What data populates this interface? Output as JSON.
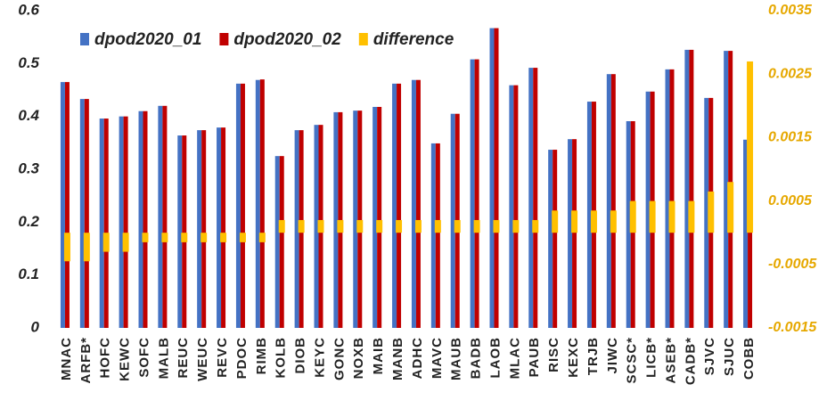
{
  "chart_data": {
    "type": "bar",
    "categories": [
      "MNAC",
      "ARFB*",
      "HOFC",
      "KEWC",
      "SOFC",
      "MALB",
      "REUC",
      "WEUC",
      "REVC",
      "PDOC",
      "RIMB",
      "KOLB",
      "DIOB",
      "KEYC",
      "GONC",
      "NOXB",
      "MAIB",
      "MANB",
      "ADHC",
      "MAVC",
      "MAUB",
      "BADB",
      "LAOB",
      "MLAC",
      "PAUB",
      "RISC",
      "KEXC",
      "TRJB",
      "JIWC",
      "SCSC*",
      "LICB*",
      "ASEB*",
      "CADB*",
      "SJVC",
      "SJUC",
      "COBB"
    ],
    "series": [
      {
        "name": "dpod2020_01",
        "color": "#4472c4",
        "values": [
          0.465,
          0.433,
          0.396,
          0.4,
          0.41,
          0.42,
          0.364,
          0.374,
          0.379,
          0.462,
          0.469,
          0.325,
          0.374,
          0.384,
          0.408,
          0.411,
          0.418,
          0.462,
          0.469,
          0.349,
          0.405,
          0.508,
          0.567,
          0.459,
          0.492,
          0.337,
          0.357,
          0.428,
          0.48,
          0.391,
          0.447,
          0.489,
          0.526,
          0.435,
          0.524,
          0.356
        ]
      },
      {
        "name": "dpod2020_02",
        "color": "#c00000",
        "values": [
          0.465,
          0.433,
          0.396,
          0.4,
          0.41,
          0.42,
          0.364,
          0.374,
          0.379,
          0.462,
          0.47,
          0.325,
          0.374,
          0.384,
          0.408,
          0.411,
          0.418,
          0.462,
          0.469,
          0.349,
          0.405,
          0.508,
          0.567,
          0.459,
          0.492,
          0.337,
          0.357,
          0.428,
          0.48,
          0.391,
          0.447,
          0.489,
          0.526,
          0.435,
          0.524,
          0.351
        ]
      },
      {
        "name": "difference",
        "color": "#ffc000",
        "axis": "y2",
        "values": [
          -0.00045,
          -0.00045,
          -0.0003,
          -0.0003,
          -0.00015,
          -0.00015,
          -0.00015,
          -0.00015,
          -0.00015,
          -0.00015,
          -0.00015,
          0.0002,
          0.0002,
          0.0002,
          0.0002,
          0.0002,
          0.0002,
          0.0002,
          0.0002,
          0.0002,
          0.0002,
          0.0002,
          0.0002,
          0.0002,
          0.0002,
          0.00035,
          0.00035,
          0.00035,
          0.00035,
          0.0005,
          0.0005,
          0.0005,
          0.0005,
          0.00065,
          0.0008,
          0.0027
        ]
      }
    ],
    "ylim": [
      0,
      0.6
    ],
    "yticks": [
      0,
      0.1,
      0.2,
      0.3,
      0.4,
      0.5,
      0.6
    ],
    "y2lim": [
      -0.0015,
      0.0035
    ],
    "y2ticks": [
      -0.0015,
      -0.0005,
      0.0005,
      0.0015,
      0.0025,
      0.0035
    ],
    "legend": "top-left"
  }
}
